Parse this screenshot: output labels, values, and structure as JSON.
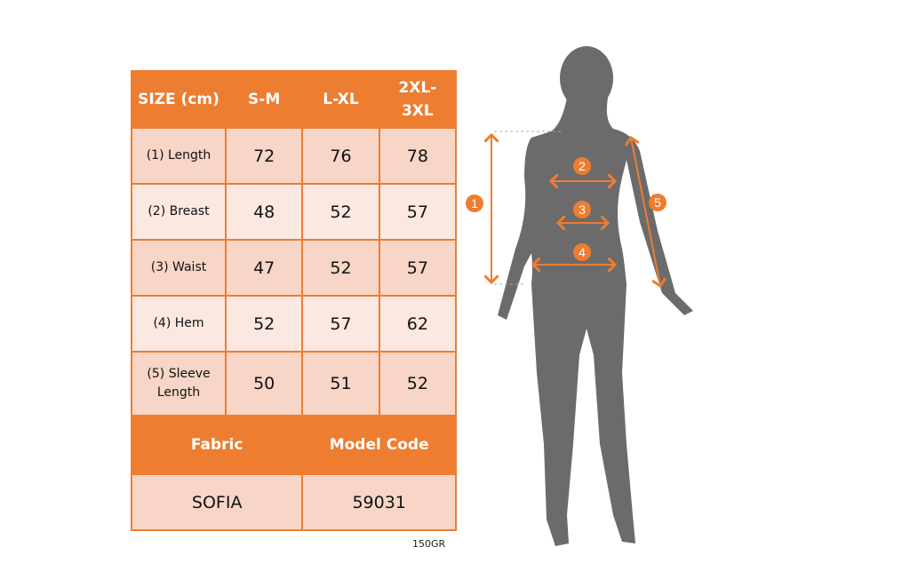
{
  "table": {
    "header": [
      "SIZE (cm)",
      "S-M",
      "L-XL",
      "2XL-3XL"
    ],
    "rows": [
      {
        "label": "(1) Length",
        "values": [
          "72",
          "76",
          "78"
        ]
      },
      {
        "label": "(2) Breast",
        "values": [
          "48",
          "52",
          "57"
        ]
      },
      {
        "label": "(3) Waist",
        "values": [
          "47",
          "52",
          "57"
        ]
      },
      {
        "label": "(4) Hem",
        "values": [
          "52",
          "57",
          "62"
        ]
      },
      {
        "label": "(5) Sleeve Length",
        "values": [
          "50",
          "51",
          "52"
        ]
      }
    ],
    "fabric_header": "Fabric",
    "model_code_header": "Model Code",
    "fabric": "SOFIA",
    "model_code": "59031"
  },
  "note": "150GR",
  "markers": [
    "1",
    "2",
    "3",
    "4",
    "5"
  ],
  "colors": {
    "accent": "#ed7d31",
    "silhouette": "#6b6b6b"
  }
}
